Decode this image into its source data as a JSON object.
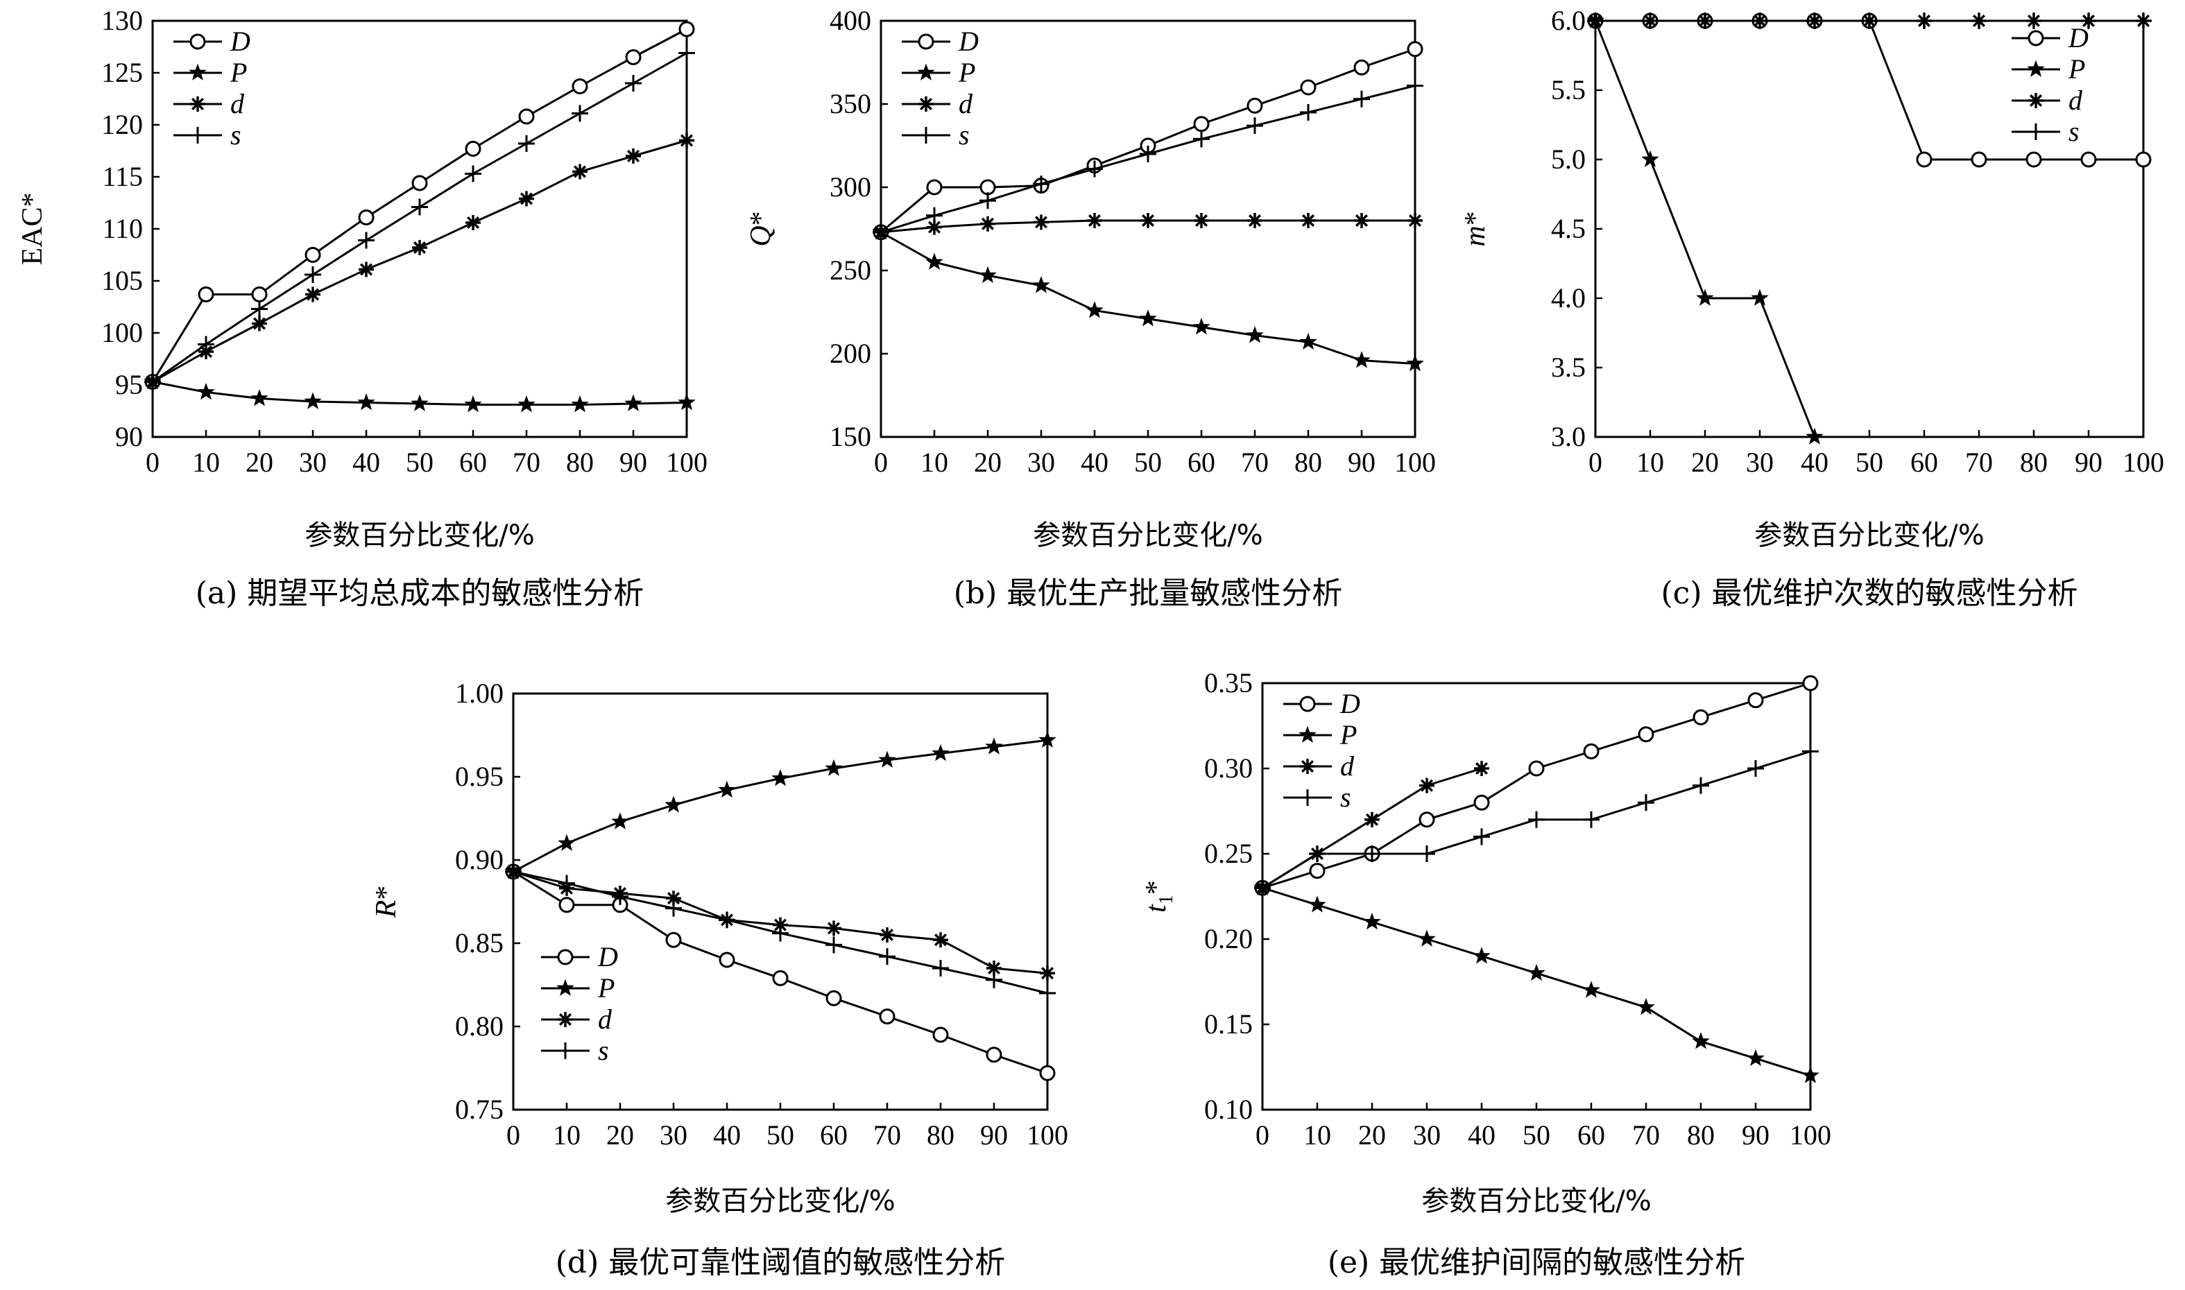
{
  "chart_data": [
    {
      "id": "a",
      "type": "line",
      "caption": "(a) 期望平均总成本的敏感性分析",
      "xlabel": "参数百分比变化/%",
      "ylabel": "EAC*",
      "ylabel_italic": false,
      "x": [
        0,
        10,
        20,
        30,
        40,
        50,
        60,
        70,
        80,
        90,
        100
      ],
      "xlim": [
        0,
        100
      ],
      "ylim": [
        90,
        130
      ],
      "yticks": [
        90,
        95,
        100,
        105,
        110,
        115,
        120,
        125,
        130
      ],
      "ytick_labels": [
        "90",
        "95",
        "100",
        "105",
        "110",
        "115",
        "120",
        "125",
        "130"
      ],
      "legend_position": "top-left",
      "series": [
        {
          "name": "D",
          "marker": "circle",
          "values": [
            95.3,
            103.7,
            103.7,
            107.5,
            111.1,
            114.4,
            117.7,
            120.8,
            123.7,
            126.5,
            129.2
          ]
        },
        {
          "name": "P",
          "marker": "star",
          "values": [
            95.3,
            94.3,
            93.7,
            93.4,
            93.3,
            93.2,
            93.1,
            93.1,
            93.1,
            93.2,
            93.3
          ]
        },
        {
          "name": "d",
          "marker": "asterisk",
          "values": [
            95.3,
            98.2,
            100.9,
            103.7,
            106.1,
            108.2,
            110.6,
            112.9,
            115.5,
            117.0,
            118.5
          ]
        },
        {
          "name": "s",
          "marker": "plus",
          "values": [
            95.3,
            98.9,
            102.3,
            105.6,
            108.9,
            112.1,
            115.3,
            118.2,
            121.1,
            124.0,
            126.9
          ]
        }
      ]
    },
    {
      "id": "b",
      "type": "line",
      "caption": "(b) 最优生产批量敏感性分析",
      "xlabel": "参数百分比变化/%",
      "ylabel": "Q*",
      "ylabel_italic": true,
      "x": [
        0,
        10,
        20,
        30,
        40,
        50,
        60,
        70,
        80,
        90,
        100
      ],
      "xlim": [
        0,
        100
      ],
      "ylim": [
        150,
        400
      ],
      "yticks": [
        150,
        200,
        250,
        300,
        350,
        400
      ],
      "ytick_labels": [
        "150",
        "200",
        "250",
        "300",
        "350",
        "400"
      ],
      "legend_position": "top-left",
      "series": [
        {
          "name": "D",
          "marker": "circle",
          "values": [
            273,
            300,
            300,
            301,
            313,
            325,
            338,
            349,
            360,
            372,
            383
          ]
        },
        {
          "name": "P",
          "marker": "star",
          "values": [
            273,
            255,
            247,
            241,
            226,
            221,
            216,
            211,
            207,
            196,
            194
          ]
        },
        {
          "name": "d",
          "marker": "asterisk",
          "values": [
            273,
            276,
            278,
            279,
            280,
            280,
            280,
            280,
            280,
            280,
            280
          ]
        },
        {
          "name": "s",
          "marker": "plus",
          "values": [
            273,
            283,
            292,
            302,
            311,
            320,
            329,
            337,
            345,
            353,
            361
          ]
        }
      ]
    },
    {
      "id": "c",
      "type": "line",
      "caption": "(c) 最优维护次数的敏感性分析",
      "xlabel": "参数百分比变化/%",
      "ylabel": "m*",
      "ylabel_italic": true,
      "x": [
        0,
        10,
        20,
        30,
        40,
        50,
        60,
        70,
        80,
        90,
        100
      ],
      "xlim": [
        0,
        100
      ],
      "ylim": [
        3.0,
        6.0
      ],
      "yticks": [
        3.0,
        3.5,
        4.0,
        4.5,
        5.0,
        5.5,
        6.0
      ],
      "ytick_labels": [
        "3.0",
        "3.5",
        "4.0",
        "4.5",
        "5.0",
        "5.5",
        "6.0"
      ],
      "legend_position": "top-right",
      "series": [
        {
          "name": "D",
          "marker": "circle",
          "values": [
            6,
            6,
            6,
            6,
            6,
            6,
            5,
            5,
            5,
            5,
            5
          ]
        },
        {
          "name": "P",
          "marker": "star",
          "values": [
            6,
            5,
            4,
            4,
            3,
            null,
            null,
            null,
            null,
            null,
            null
          ]
        },
        {
          "name": "d",
          "marker": "asterisk",
          "values": [
            6,
            6,
            6,
            6,
            6,
            6,
            6,
            6,
            6,
            6,
            6
          ]
        },
        {
          "name": "s",
          "marker": "plus",
          "values": [
            6,
            6,
            6,
            6,
            6,
            6,
            6,
            6,
            6,
            6,
            6
          ]
        }
      ]
    },
    {
      "id": "d",
      "type": "line",
      "caption": "(d) 最优可靠性阈值的敏感性分析",
      "xlabel": "参数百分比变化/%",
      "ylabel": "R*",
      "ylabel_italic": true,
      "x": [
        0,
        10,
        20,
        30,
        40,
        50,
        60,
        70,
        80,
        90,
        100
      ],
      "xlim": [
        0,
        100
      ],
      "ylim": [
        0.75,
        1.0
      ],
      "yticks": [
        0.75,
        0.8,
        0.85,
        0.9,
        0.95,
        1.0
      ],
      "ytick_labels": [
        "0.75",
        "0.80",
        "0.85",
        "0.90",
        "0.95",
        "1.00"
      ],
      "legend_position": "bottom-left",
      "series": [
        {
          "name": "D",
          "marker": "circle",
          "values": [
            0.893,
            0.873,
            0.873,
            0.852,
            0.84,
            0.829,
            0.817,
            0.806,
            0.795,
            0.783,
            0.772
          ]
        },
        {
          "name": "P",
          "marker": "star",
          "values": [
            0.893,
            0.91,
            0.923,
            0.933,
            0.942,
            0.949,
            0.955,
            0.96,
            0.964,
            0.968,
            0.972
          ]
        },
        {
          "name": "d",
          "marker": "asterisk",
          "values": [
            0.893,
            0.883,
            0.88,
            0.877,
            0.864,
            0.861,
            0.859,
            0.855,
            0.852,
            0.835,
            0.832
          ]
        },
        {
          "name": "s",
          "marker": "plus",
          "values": [
            0.893,
            0.886,
            0.878,
            0.871,
            0.864,
            0.856,
            0.849,
            0.842,
            0.835,
            0.828,
            0.82
          ]
        }
      ]
    },
    {
      "id": "e",
      "type": "line",
      "caption": "(e) 最优维护间隔的敏感性分析",
      "xlabel": "参数百分比变化/%",
      "ylabel": "t1*",
      "ylabel_italic": true,
      "x": [
        0,
        10,
        20,
        30,
        40,
        50,
        60,
        70,
        80,
        90,
        100
      ],
      "xlim": [
        0,
        100
      ],
      "ylim": [
        0.1,
        0.35
      ],
      "yticks": [
        0.1,
        0.15,
        0.2,
        0.25,
        0.3,
        0.35
      ],
      "ytick_labels": [
        "0.10",
        "0.15",
        "0.20",
        "0.25",
        "0.30",
        "0.35"
      ],
      "legend_position": "top-left",
      "series": [
        {
          "name": "D",
          "marker": "circle",
          "values": [
            0.23,
            0.24,
            0.25,
            0.27,
            0.28,
            0.3,
            0.31,
            0.32,
            0.33,
            0.34,
            0.35
          ]
        },
        {
          "name": "P",
          "marker": "star",
          "values": [
            0.23,
            0.22,
            0.21,
            0.2,
            0.19,
            0.18,
            0.17,
            0.16,
            0.14,
            0.13,
            0.12
          ]
        },
        {
          "name": "d",
          "marker": "asterisk",
          "values": [
            0.23,
            0.25,
            0.27,
            0.29,
            0.3,
            null,
            null,
            null,
            null,
            null,
            null
          ]
        },
        {
          "name": "s",
          "marker": "plus",
          "values": [
            0.23,
            0.25,
            0.25,
            0.25,
            0.26,
            0.27,
            0.27,
            0.28,
            0.29,
            0.3,
            0.31
          ]
        }
      ]
    }
  ],
  "colors": {
    "line": "#000000",
    "background": "#ffffff"
  }
}
